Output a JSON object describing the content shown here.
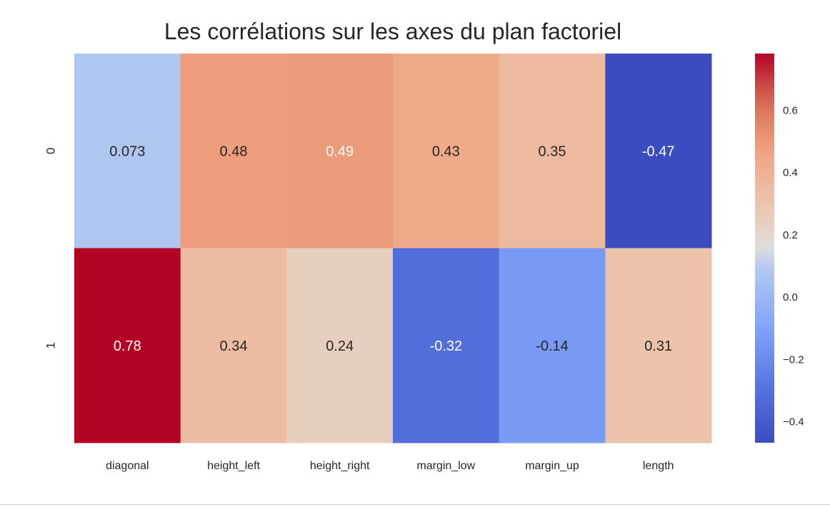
{
  "chart_data": {
    "type": "heatmap",
    "title": "Les corrélations sur les axes du plan factoriel",
    "xlabel": "",
    "ylabel": "",
    "x_categories": [
      "diagonal",
      "height_left",
      "height_right",
      "margin_low",
      "margin_up",
      "length"
    ],
    "y_categories": [
      "0",
      "1"
    ],
    "values": [
      [
        0.073,
        0.48,
        0.49,
        0.43,
        0.35,
        -0.47
      ],
      [
        0.78,
        0.34,
        0.24,
        -0.32,
        -0.14,
        0.31
      ]
    ],
    "cell_labels": [
      [
        "0.073",
        "0.48",
        "0.49",
        "0.43",
        "0.35",
        "-0.47"
      ],
      [
        "0.78",
        "0.34",
        "0.24",
        "-0.32",
        "-0.14",
        "0.31"
      ]
    ],
    "colormap": "coolwarm",
    "vmin": -0.47,
    "vmax": 0.78,
    "colorbar": {
      "ticks": [
        -0.4,
        -0.2,
        0.0,
        0.2,
        0.4,
        0.6
      ],
      "tick_labels": [
        "−0.4",
        "−0.2",
        "0.0",
        "0.2",
        "0.4",
        "0.6"
      ]
    },
    "grid": false,
    "legend": "colorbar-right"
  }
}
